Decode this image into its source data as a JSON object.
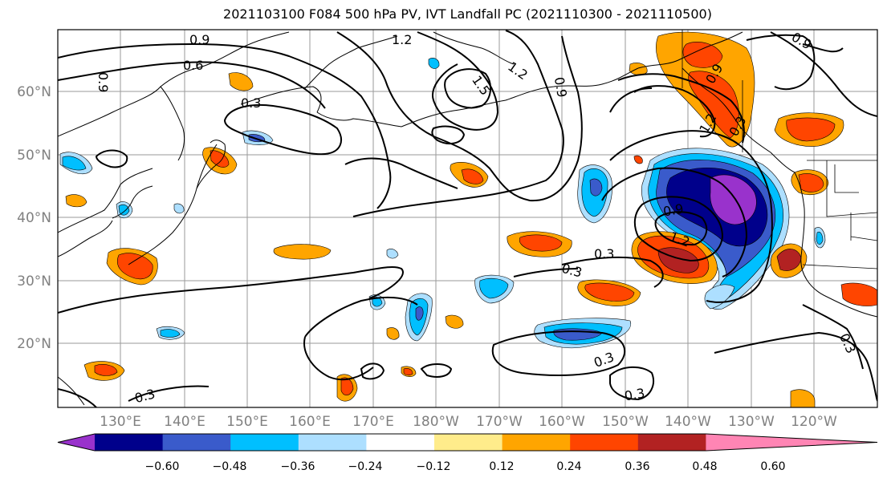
{
  "title": "2021103100 F084 500 hPa PV, IVT Landfall PC (2021110300 - 2021110500)",
  "lat_labels": [
    "60°N",
    "50°N",
    "40°N",
    "30°N",
    "20°N"
  ],
  "lon_labels": [
    "130°E",
    "140°E",
    "150°E",
    "160°E",
    "170°E",
    "180°W",
    "170°W",
    "160°W",
    "150°W",
    "140°W",
    "130°W",
    "120°W"
  ],
  "colorbar": {
    "ticks": [
      "−0.60",
      "−0.48",
      "−0.36",
      "−0.24",
      "−0.12",
      "0.12",
      "0.24",
      "0.36",
      "0.48",
      "0.60"
    ],
    "colors": [
      "#9932CC",
      "#00008B",
      "#3A5BCB",
      "#00BFFF",
      "#ADDFFF",
      "#FFFFFF",
      "#FFEC8B",
      "#FFA500",
      "#FF4500",
      "#B22222",
      "#FF85B4"
    ]
  },
  "contour_labels": [
    "0.9",
    "0.6",
    "0.9",
    "0.3",
    "1.2",
    "1.5",
    "1.2",
    "0.9",
    "0.9",
    "1.2",
    "0.9",
    "0.3",
    "0.9",
    "1.2",
    "0.3",
    "0.3",
    "0.3",
    "0.3",
    "0.3",
    "0.3"
  ]
}
